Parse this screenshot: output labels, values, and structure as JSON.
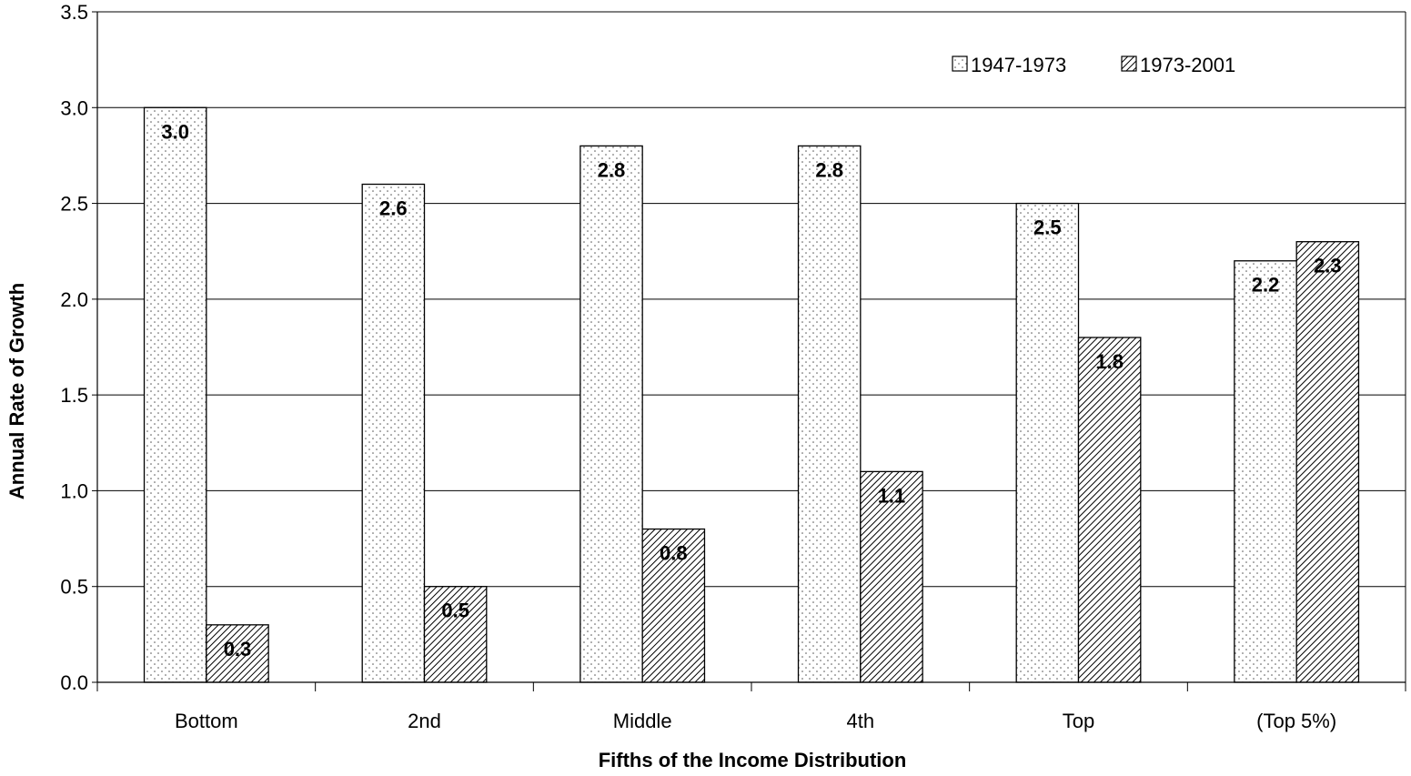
{
  "chart_data": {
    "type": "bar",
    "categories": [
      "Bottom",
      "2nd",
      "Middle",
      "4th",
      "Top",
      "(Top 5%)"
    ],
    "series": [
      {
        "name": "1947-1973",
        "values": [
          3.0,
          2.6,
          2.8,
          2.8,
          2.5,
          2.2
        ],
        "pattern": "dots"
      },
      {
        "name": "1973-2001",
        "values": [
          0.3,
          0.5,
          0.8,
          1.1,
          1.8,
          2.3
        ],
        "pattern": "diagonal-hatch"
      }
    ],
    "data_labels": [
      [
        "3.0",
        "2.6",
        "2.8",
        "2.8",
        "2.5",
        "2.2"
      ],
      [
        "0.3",
        "0.5",
        "0.8",
        "1.1",
        "1.8",
        "2.3"
      ]
    ],
    "xlabel": "Fifths of the Income Distribution",
    "ylabel": "Annual Rate of Growth",
    "ylim": [
      0,
      3.5
    ],
    "yticks": [
      "0.0",
      "0.5",
      "1.0",
      "1.5",
      "2.0",
      "2.5",
      "3.0",
      "3.5"
    ],
    "grid": true,
    "legend_position": "top-right",
    "colors": {
      "bar_fill": "#ffffff",
      "pattern": "#000000",
      "grid": "#000000"
    }
  }
}
